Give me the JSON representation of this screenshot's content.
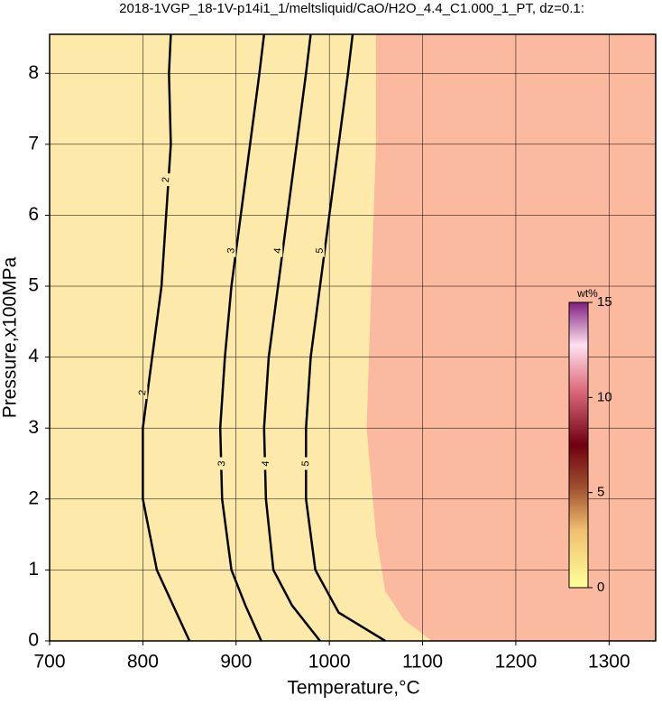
{
  "chart_data": {
    "type": "contour",
    "title": "2018-1VGP_18-1V-p14i1_1/meltsliquid/CaO/H2O_4.4_C1.000_1_PT, dz=0.1:",
    "x_label": "Temperature,°C",
    "y_label": "Pressure,x100MPa",
    "xlim": [
      700,
      1350
    ],
    "ylim": [
      0,
      8.55
    ],
    "xticks": [
      700,
      800,
      900,
      1000,
      1100,
      1200,
      1300
    ],
    "yticks": [
      0,
      1,
      2,
      3,
      4,
      5,
      6,
      7,
      8
    ],
    "grid": true,
    "background_color": "#fde9a9",
    "region": {
      "color": "#fbb9a0",
      "x": [
        1050,
        1050,
        1045,
        1040,
        1050,
        1060,
        1080,
        1110,
        1350,
        1350
      ],
      "y": [
        8.55,
        7,
        5,
        3,
        1.5,
        0.7,
        0.3,
        0,
        0,
        8.55
      ]
    },
    "contours": [
      {
        "level": 2,
        "x": [
          850,
          815,
          800,
          800,
          810,
          820,
          825,
          830,
          828,
          830
        ],
        "y": [
          0,
          1,
          2,
          3,
          4,
          5,
          6,
          7,
          8,
          8.55
        ]
      },
      {
        "level": 3,
        "x": [
          927,
          910,
          895,
          885,
          883,
          888,
          895,
          905,
          915,
          925,
          930
        ],
        "y": [
          0,
          0.5,
          1,
          2,
          3,
          4,
          5,
          6,
          7,
          8,
          8.55
        ]
      },
      {
        "level": 4,
        "x": [
          990,
          960,
          940,
          932,
          930,
          935,
          945,
          955,
          965,
          975,
          980
        ],
        "y": [
          0,
          0.5,
          1,
          2,
          3,
          4,
          5,
          6,
          7,
          8,
          8.55
        ]
      },
      {
        "level": 5,
        "x": [
          1060,
          1010,
          985,
          975,
          975,
          980,
          990,
          1000,
          1010,
          1020,
          1025
        ],
        "y": [
          0,
          0.4,
          1,
          2,
          3,
          4,
          5,
          6,
          7,
          8,
          8.55
        ]
      }
    ],
    "colorbar": {
      "label": "wt%",
      "lim": [
        0,
        15
      ],
      "ticks": [
        0,
        5,
        10,
        15
      ]
    }
  }
}
